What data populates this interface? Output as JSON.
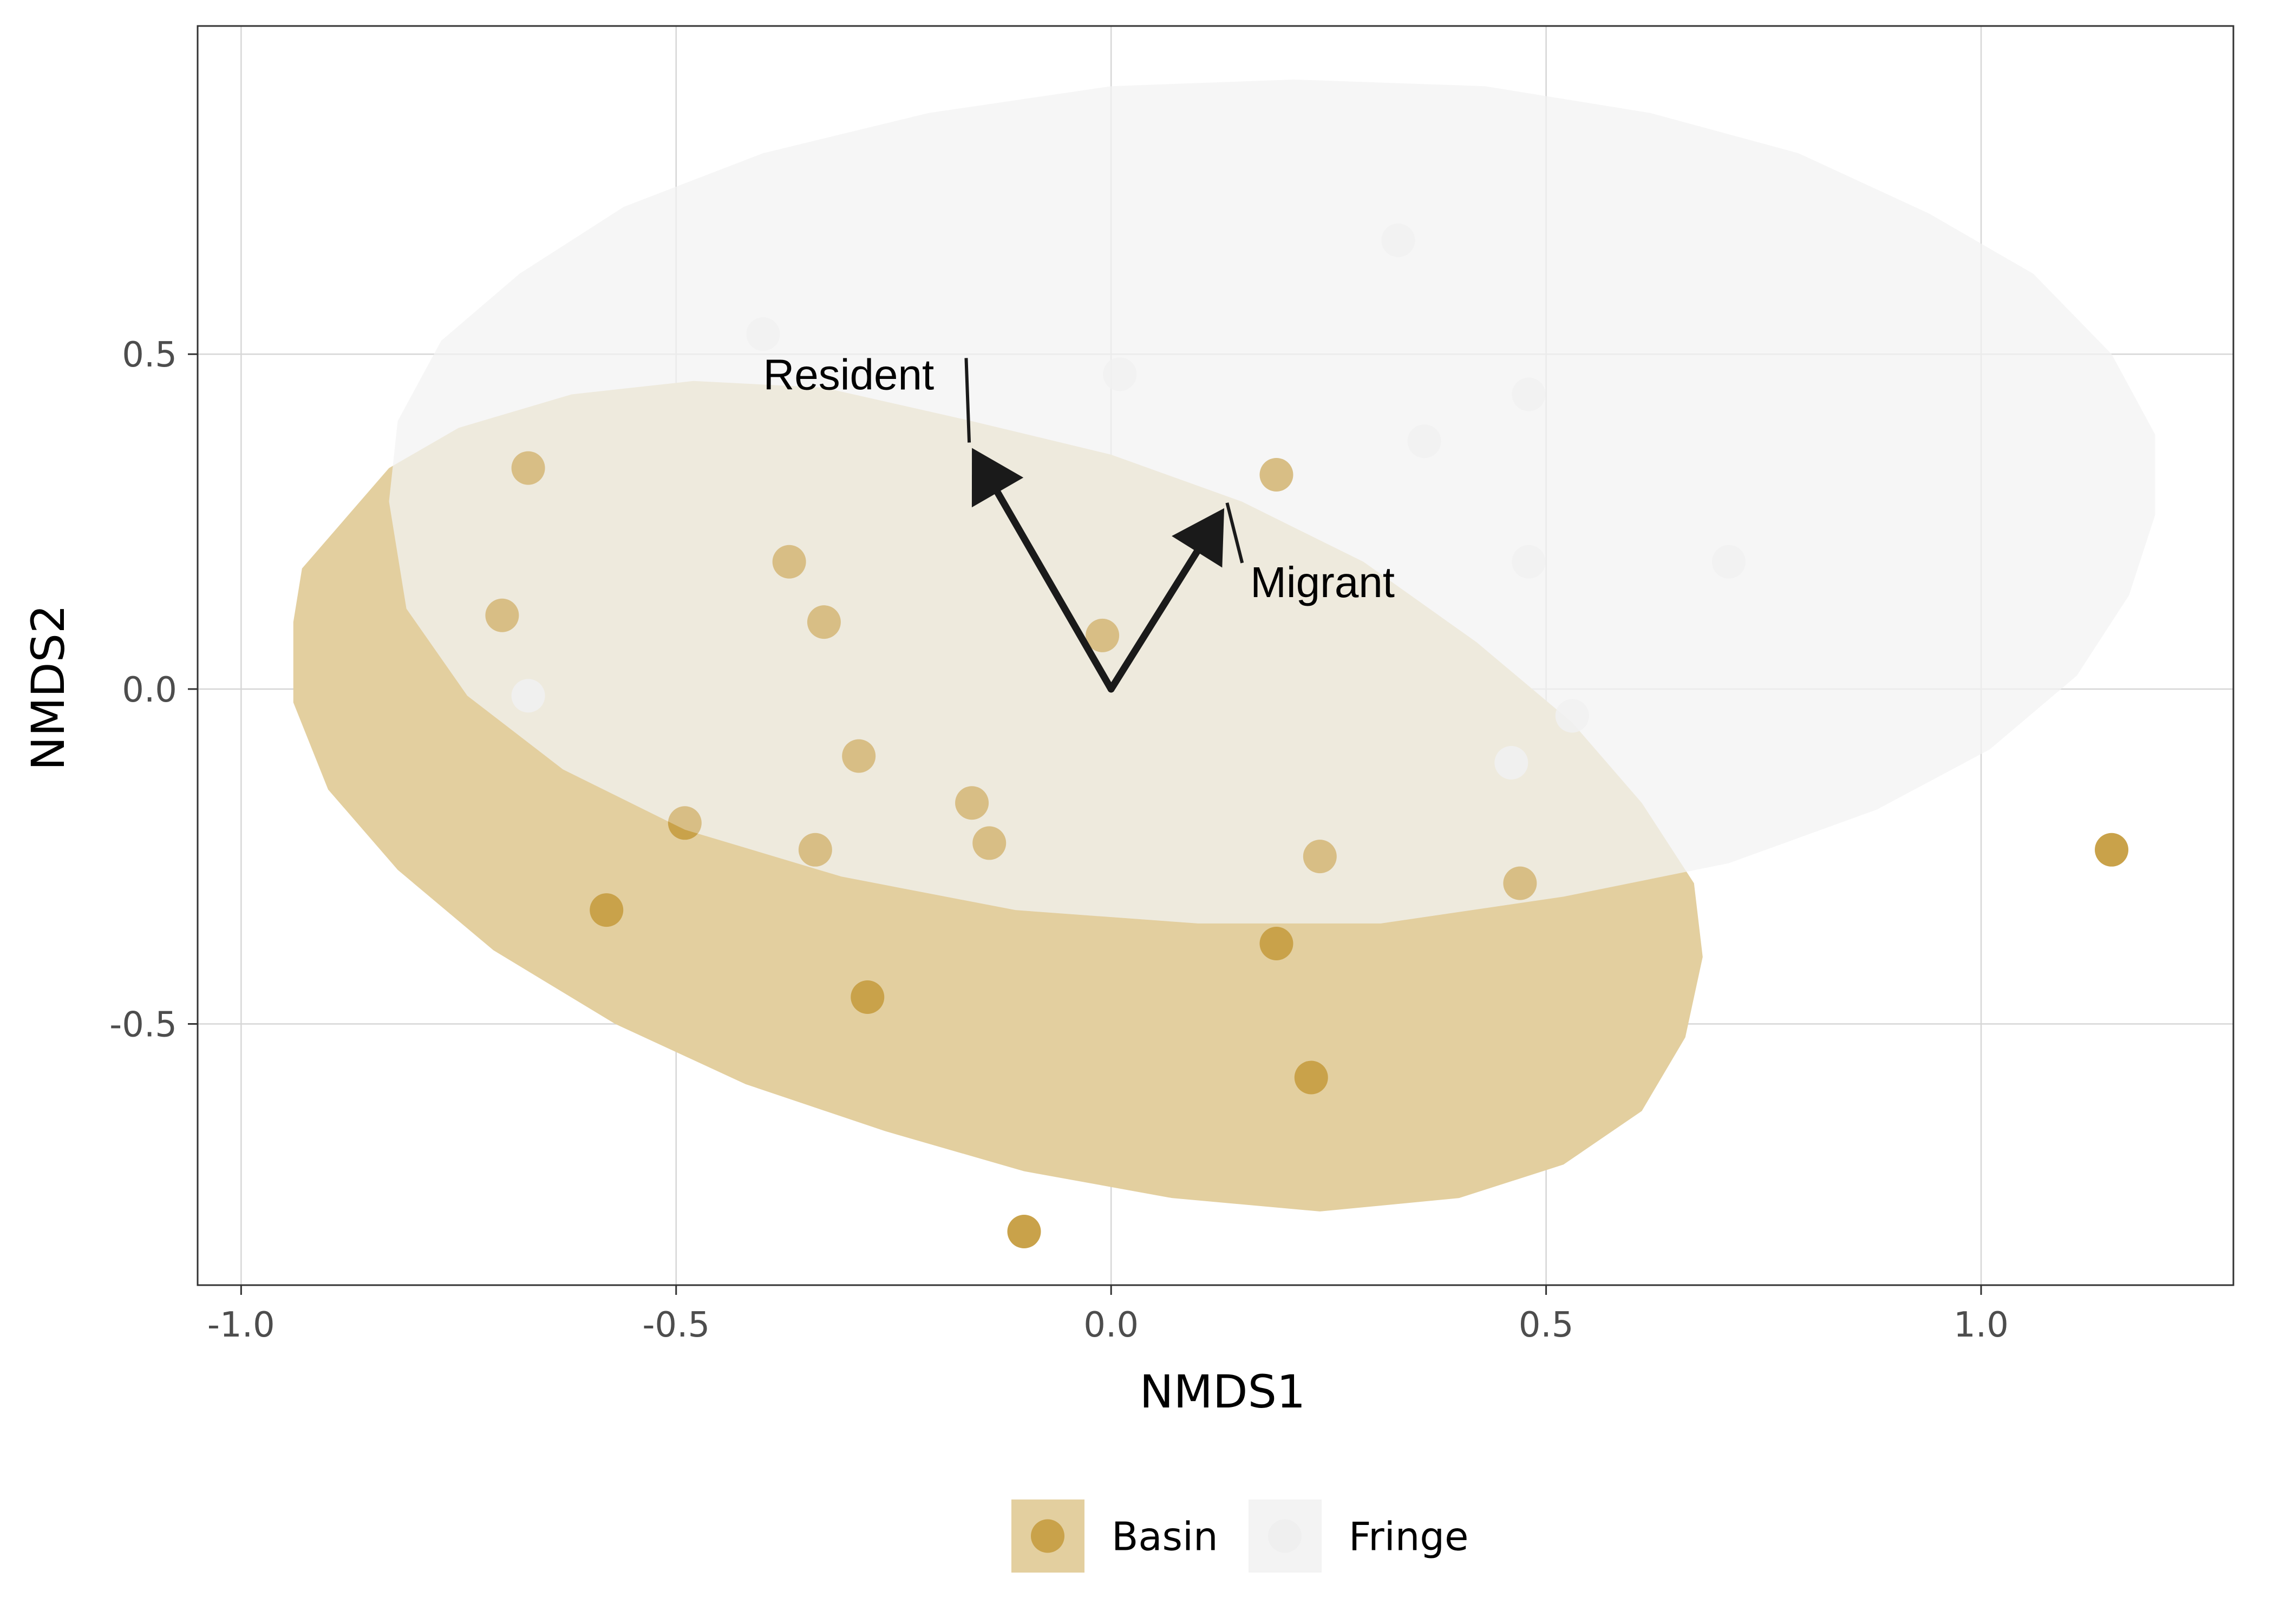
{
  "chart_data": {
    "type": "scatter",
    "xlabel": "NMDS1",
    "ylabel": "NMDS2",
    "xlim": [
      -1.05,
      1.29
    ],
    "ylim": [
      -0.89,
      0.99
    ],
    "x_ticks": [
      -1.0,
      -0.5,
      0.0,
      0.5,
      1.0
    ],
    "x_tick_labels": [
      "-1.0",
      "-0.5",
      "0.0",
      "0.5",
      "1.0"
    ],
    "y_ticks": [
      -0.5,
      0.0,
      0.5
    ],
    "y_tick_labels": [
      "-0.5",
      "0.0",
      "0.5"
    ],
    "grid": true,
    "legend_position": "bottom",
    "series": [
      {
        "name": "Basin",
        "color": "#c9a24a",
        "ellipse_fill": "#e3cf9f",
        "points": [
          [
            -0.67,
            0.33
          ],
          [
            -0.7,
            0.11
          ],
          [
            -0.37,
            0.19
          ],
          [
            -0.33,
            0.1
          ],
          [
            -0.29,
            -0.1
          ],
          [
            -0.16,
            -0.17
          ],
          [
            -0.14,
            -0.23
          ],
          [
            -0.34,
            -0.24
          ],
          [
            -0.49,
            -0.2
          ],
          [
            -0.58,
            -0.33
          ],
          [
            -0.28,
            -0.46
          ],
          [
            -0.1,
            -0.81
          ],
          [
            0.19,
            0.32
          ],
          [
            0.24,
            -0.25
          ],
          [
            0.47,
            -0.29
          ],
          [
            0.19,
            -0.38
          ],
          [
            0.23,
            -0.58
          ],
          [
            1.15,
            -0.24
          ],
          [
            -0.01,
            0.08
          ]
        ]
      },
      {
        "name": "Fringe",
        "color": "#efefef",
        "ellipse_fill": "#f2f2f2",
        "points": [
          [
            -0.4,
            0.53
          ],
          [
            0.01,
            0.47
          ],
          [
            0.33,
            0.67
          ],
          [
            0.36,
            0.37
          ],
          [
            0.48,
            0.44
          ],
          [
            0.48,
            0.19
          ],
          [
            0.71,
            0.19
          ],
          [
            0.53,
            -0.04
          ],
          [
            0.46,
            -0.11
          ],
          [
            -0.67,
            -0.01
          ]
        ]
      }
    ],
    "ellipses": [
      {
        "series": "Basin",
        "center": [
          -0.13,
          -0.16
        ],
        "polygon": [
          [
            -0.94,
            0.1
          ],
          [
            -0.93,
            0.18
          ],
          [
            -0.87,
            0.27
          ],
          [
            -0.83,
            0.33
          ],
          [
            -0.75,
            0.39
          ],
          [
            -0.62,
            0.44
          ],
          [
            -0.48,
            0.46
          ],
          [
            -0.33,
            0.45
          ],
          [
            -0.16,
            0.4
          ],
          [
            0.0,
            0.35
          ],
          [
            0.15,
            0.28
          ],
          [
            0.29,
            0.19
          ],
          [
            0.42,
            0.07
          ],
          [
            0.53,
            -0.05
          ],
          [
            0.61,
            -0.17
          ],
          [
            0.67,
            -0.29
          ],
          [
            0.68,
            -0.4
          ],
          [
            0.66,
            -0.52
          ],
          [
            0.61,
            -0.63
          ],
          [
            0.52,
            -0.71
          ],
          [
            0.4,
            -0.76
          ],
          [
            0.24,
            -0.78
          ],
          [
            0.07,
            -0.76
          ],
          [
            -0.1,
            -0.72
          ],
          [
            -0.26,
            -0.66
          ],
          [
            -0.42,
            -0.59
          ],
          [
            -0.57,
            -0.5
          ],
          [
            -0.71,
            -0.39
          ],
          [
            -0.82,
            -0.27
          ],
          [
            -0.9,
            -0.15
          ],
          [
            -0.94,
            -0.02
          ]
        ]
      },
      {
        "series": "Fringe",
        "center": [
          0.19,
          0.27
        ],
        "polygon": [
          [
            -0.83,
            0.28
          ],
          [
            -0.82,
            0.4
          ],
          [
            -0.77,
            0.52
          ],
          [
            -0.68,
            0.62
          ],
          [
            -0.56,
            0.72
          ],
          [
            -0.4,
            0.8
          ],
          [
            -0.21,
            0.86
          ],
          [
            0.0,
            0.9
          ],
          [
            0.21,
            0.91
          ],
          [
            0.43,
            0.9
          ],
          [
            0.62,
            0.86
          ],
          [
            0.79,
            0.8
          ],
          [
            0.94,
            0.71
          ],
          [
            1.06,
            0.62
          ],
          [
            1.15,
            0.5
          ],
          [
            1.2,
            0.38
          ],
          [
            1.2,
            0.26
          ],
          [
            1.17,
            0.14
          ],
          [
            1.11,
            0.02
          ],
          [
            1.01,
            -0.09
          ],
          [
            0.88,
            -0.18
          ],
          [
            0.71,
            -0.26
          ],
          [
            0.52,
            -0.31
          ],
          [
            0.31,
            -0.35
          ],
          [
            0.1,
            -0.35
          ],
          [
            -0.11,
            -0.33
          ],
          [
            -0.31,
            -0.28
          ],
          [
            -0.49,
            -0.21
          ],
          [
            -0.63,
            -0.12
          ],
          [
            -0.74,
            -0.01
          ],
          [
            -0.81,
            0.12
          ]
        ]
      }
    ],
    "vectors": [
      {
        "label": "Resident",
        "end": [
          -0.16,
          0.36
        ],
        "label_at": [
          -0.4,
          0.47
        ]
      },
      {
        "label": "Migrant",
        "end": [
          0.13,
          0.27
        ],
        "label_at": [
          0.16,
          0.16
        ]
      }
    ]
  }
}
